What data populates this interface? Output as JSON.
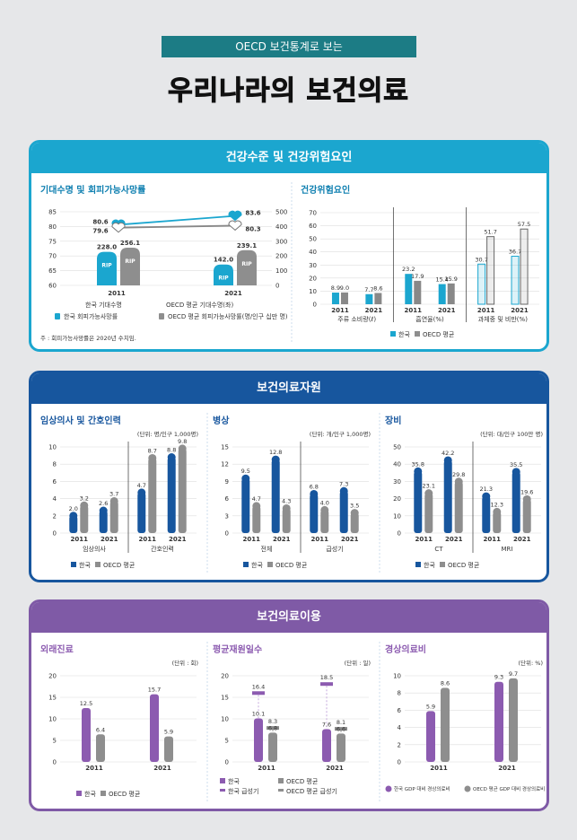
{
  "header": {
    "subtitle": "OECD 보건통계로 보는",
    "title": "우리나라의 보건의료"
  },
  "sections": {
    "health": {
      "title": "건강수준 및 건강위험요인"
    },
    "resources": {
      "title": "보건의료자원"
    },
    "utilization": {
      "title": "보건의료이용"
    }
  },
  "chart_data": [
    {
      "id": "life",
      "type": "bar",
      "title": "기대수명 및 회피가능사망률",
      "categories": [
        "2011",
        "2021"
      ],
      "series": [
        {
          "name": "한국 기대수명",
          "axis": "left",
          "kind": "line",
          "values": [
            80.6,
            83.6
          ]
        },
        {
          "name": "OECD 평균 기대수명(좌)",
          "axis": "left",
          "kind": "line",
          "values": [
            79.6,
            80.3
          ]
        },
        {
          "name": "한국 회피가능사망률",
          "axis": "right",
          "kind": "bar",
          "values": [
            228.0,
            142.0
          ]
        },
        {
          "name": "OECD 평균 회피가능사망률(명/인구 십만 명)",
          "axis": "right",
          "kind": "bar",
          "values": [
            256.1,
            239.1
          ]
        }
      ],
      "ylim_left": [
        60,
        85
      ],
      "yticks_left": [
        "85",
        "80",
        "75",
        "70",
        "65",
        "60"
      ],
      "ylim_right": [
        0,
        500
      ],
      "yticks_right": [
        "500",
        "400",
        "300",
        "200",
        "100",
        "0"
      ],
      "bar_mark": "RIP",
      "note": "주 : 회피가능사망률은 2020년 수치임."
    },
    {
      "id": "risk",
      "type": "bar",
      "title": "건강위험요인",
      "groups": [
        {
          "label": "주류 소비량(ℓ)",
          "years": [
            "2011",
            "2021"
          ],
          "korea": [
            8.9,
            7.7
          ],
          "oecd": [
            9.0,
            8.6
          ]
        },
        {
          "label": "흡연율(%)",
          "years": [
            "2011",
            "2021"
          ],
          "korea": [
            23.2,
            15.4
          ],
          "oecd": [
            17.9,
            15.9
          ]
        },
        {
          "label": "과체중 및 비만(%)",
          "years": [
            "2011",
            "2021"
          ],
          "korea": [
            30.7,
            36.7
          ],
          "oecd": [
            51.7,
            57.5
          ]
        }
      ],
      "ylim": [
        0,
        70
      ],
      "yticks": [
        "70",
        "60",
        "50",
        "40",
        "30",
        "20",
        "10",
        "0"
      ],
      "legend": [
        "한국",
        "OECD 평균"
      ]
    },
    {
      "id": "doctors",
      "type": "bar",
      "title": "임상의사 및 간호인력",
      "unit": "(단위: 명/인구 1,000명)",
      "groups": [
        {
          "label": "임상의사",
          "years": [
            "2011",
            "2021"
          ],
          "korea": [
            2.0,
            2.6
          ],
          "oecd": [
            3.2,
            3.7
          ]
        },
        {
          "label": "간호인력",
          "years": [
            "2011",
            "2021"
          ],
          "korea": [
            4.7,
            8.8
          ],
          "oecd": [
            8.7,
            9.8
          ]
        }
      ],
      "ylim": [
        0,
        10
      ],
      "yticks": [
        "10",
        "8",
        "6",
        "4",
        "2",
        "0"
      ],
      "legend": [
        "한국",
        "OECD 평균"
      ]
    },
    {
      "id": "beds",
      "type": "bar",
      "title": "병상",
      "unit": "(단위: 개/인구 1,000명)",
      "groups": [
        {
          "label": "전체",
          "years": [
            "2011",
            "2021"
          ],
          "korea": [
            9.5,
            12.8
          ],
          "oecd": [
            4.7,
            4.3
          ]
        },
        {
          "label": "급성기",
          "years": [
            "2011",
            "2021"
          ],
          "korea": [
            6.8,
            7.3
          ],
          "oecd": [
            4.0,
            3.5
          ]
        }
      ],
      "ylim": [
        0,
        15
      ],
      "yticks": [
        "15",
        "12",
        "9",
        "6",
        "3",
        "0"
      ],
      "legend": [
        "한국",
        "OECD 평균"
      ]
    },
    {
      "id": "equip",
      "type": "bar",
      "title": "장비",
      "unit": "(단위: 대/인구 100만 명)",
      "groups": [
        {
          "label": "CT",
          "years": [
            "2011",
            "2021"
          ],
          "korea": [
            35.8,
            42.2
          ],
          "oecd": [
            23.1,
            29.8
          ]
        },
        {
          "label": "MRI",
          "years": [
            "2011",
            "2021"
          ],
          "korea": [
            21.3,
            35.5
          ],
          "oecd": [
            12.3,
            19.6
          ]
        }
      ],
      "ylim": [
        0,
        50
      ],
      "yticks": [
        "50",
        "40",
        "30",
        "20",
        "10",
        "0"
      ],
      "legend": [
        "한국",
        "OECD 평균"
      ]
    },
    {
      "id": "outpatient",
      "type": "bar",
      "title": "외래진료",
      "unit": "(단위 : 회)",
      "categories": [
        "2011",
        "2021"
      ],
      "korea": [
        12.5,
        15.7
      ],
      "oecd": [
        6.4,
        5.9
      ],
      "ylim": [
        0,
        20
      ],
      "yticks": [
        "20",
        "15",
        "10",
        "5",
        "0"
      ],
      "legend": [
        "한국",
        "OECD 평균"
      ]
    },
    {
      "id": "stay",
      "type": "bar",
      "title": "평균재원일수",
      "unit": "(단위 : 일)",
      "categories": [
        "2011",
        "2021"
      ],
      "korea": [
        10.1,
        7.6
      ],
      "oecd": [
        6.8,
        6.6
      ],
      "korea_acute": [
        16.4,
        18.5
      ],
      "oecd_acute": [
        8.3,
        8.1
      ],
      "ylim": [
        0,
        20
      ],
      "yticks": [
        "20",
        "15",
        "10",
        "5",
        "0"
      ],
      "legend": [
        "한국",
        "OECD 평균",
        "한국 급성기",
        "OECD 평균 급성기"
      ]
    },
    {
      "id": "expense",
      "type": "bar",
      "title": "경상의료비",
      "unit": "(단위: %)",
      "categories": [
        "2011",
        "2021"
      ],
      "korea": [
        5.9,
        9.3
      ],
      "oecd": [
        8.6,
        9.7
      ],
      "ylim": [
        0,
        10
      ],
      "yticks": [
        "10",
        "8",
        "6",
        "4",
        "2",
        "0"
      ],
      "legend": [
        "한국 GDP 대비 경상의료비",
        "OECD 평균 GDP 대비 경상의료비"
      ]
    }
  ],
  "colors": {
    "korea_blue": "#1ba6cf",
    "korea_navy": "#17569e",
    "korea_purple": "#8c5bb0",
    "oecd_gray": "#8e8e8e",
    "teal": "#1c7c85"
  }
}
